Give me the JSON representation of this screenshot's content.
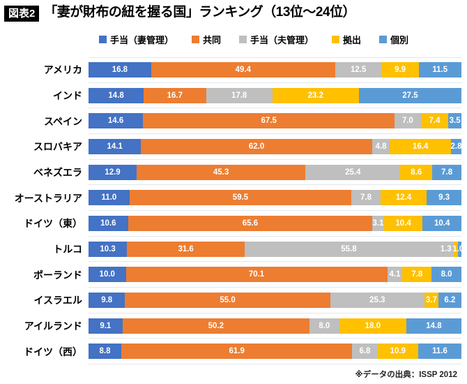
{
  "header": {
    "badge": "図表2",
    "title": "「妻が財布の紐を握る国」ランキング（13位〜24位）"
  },
  "footer": {
    "source": "※データの出典：ISSP 2012"
  },
  "colors": {
    "wife_allowance": "#4472C4",
    "joint": "#ED7D31",
    "husband_allowance": "#BFBFBF",
    "contribution": "#FFC000",
    "separate": "#5B9BD5",
    "gridline": "#E3E7EE"
  },
  "chart_data": {
    "type": "bar",
    "stacked": true,
    "orientation": "horizontal",
    "title": "「妻が財布の紐を握る国」ランキング（13位〜24位）",
    "xlabel": "",
    "ylabel": "",
    "xlim": [
      0,
      100
    ],
    "value_suffix": "%",
    "value_decimals": 1,
    "legend_position": "top",
    "grid": "category-separators",
    "categories": [
      "アメリカ",
      "インド",
      "スペイン",
      "スロバキア",
      "ベネズエラ",
      "オーストラリア",
      "ドイツ（東）",
      "トルコ",
      "ポーランド",
      "イスラエル",
      "アイルランド",
      "ドイツ（西）"
    ],
    "series": [
      {
        "name": "手当（妻管理）",
        "color": "#4472C4",
        "values": [
          16.8,
          14.8,
          14.6,
          14.1,
          12.9,
          11.0,
          10.6,
          10.3,
          10.0,
          9.8,
          9.1,
          8.8
        ]
      },
      {
        "name": "共同",
        "color": "#ED7D31",
        "values": [
          49.4,
          16.7,
          67.5,
          62.0,
          45.3,
          59.5,
          65.6,
          31.6,
          70.1,
          55.0,
          50.2,
          61.9
        ]
      },
      {
        "name": "手当（夫管理）",
        "color": "#BFBFBF",
        "values": [
          12.5,
          17.8,
          7.0,
          4.8,
          25.4,
          7.8,
          3.1,
          55.8,
          4.1,
          25.3,
          8.0,
          6.8
        ]
      },
      {
        "name": "拠出",
        "color": "#FFC000",
        "values": [
          9.9,
          23.2,
          7.4,
          16.4,
          8.6,
          12.4,
          10.4,
          1.3,
          7.8,
          3.7,
          18.0,
          10.9
        ]
      },
      {
        "name": "個別",
        "color": "#5B9BD5",
        "values": [
          11.5,
          27.5,
          3.5,
          2.8,
          7.8,
          9.3,
          10.4,
          1.0,
          8.0,
          6.2,
          14.8,
          11.6
        ]
      }
    ]
  }
}
